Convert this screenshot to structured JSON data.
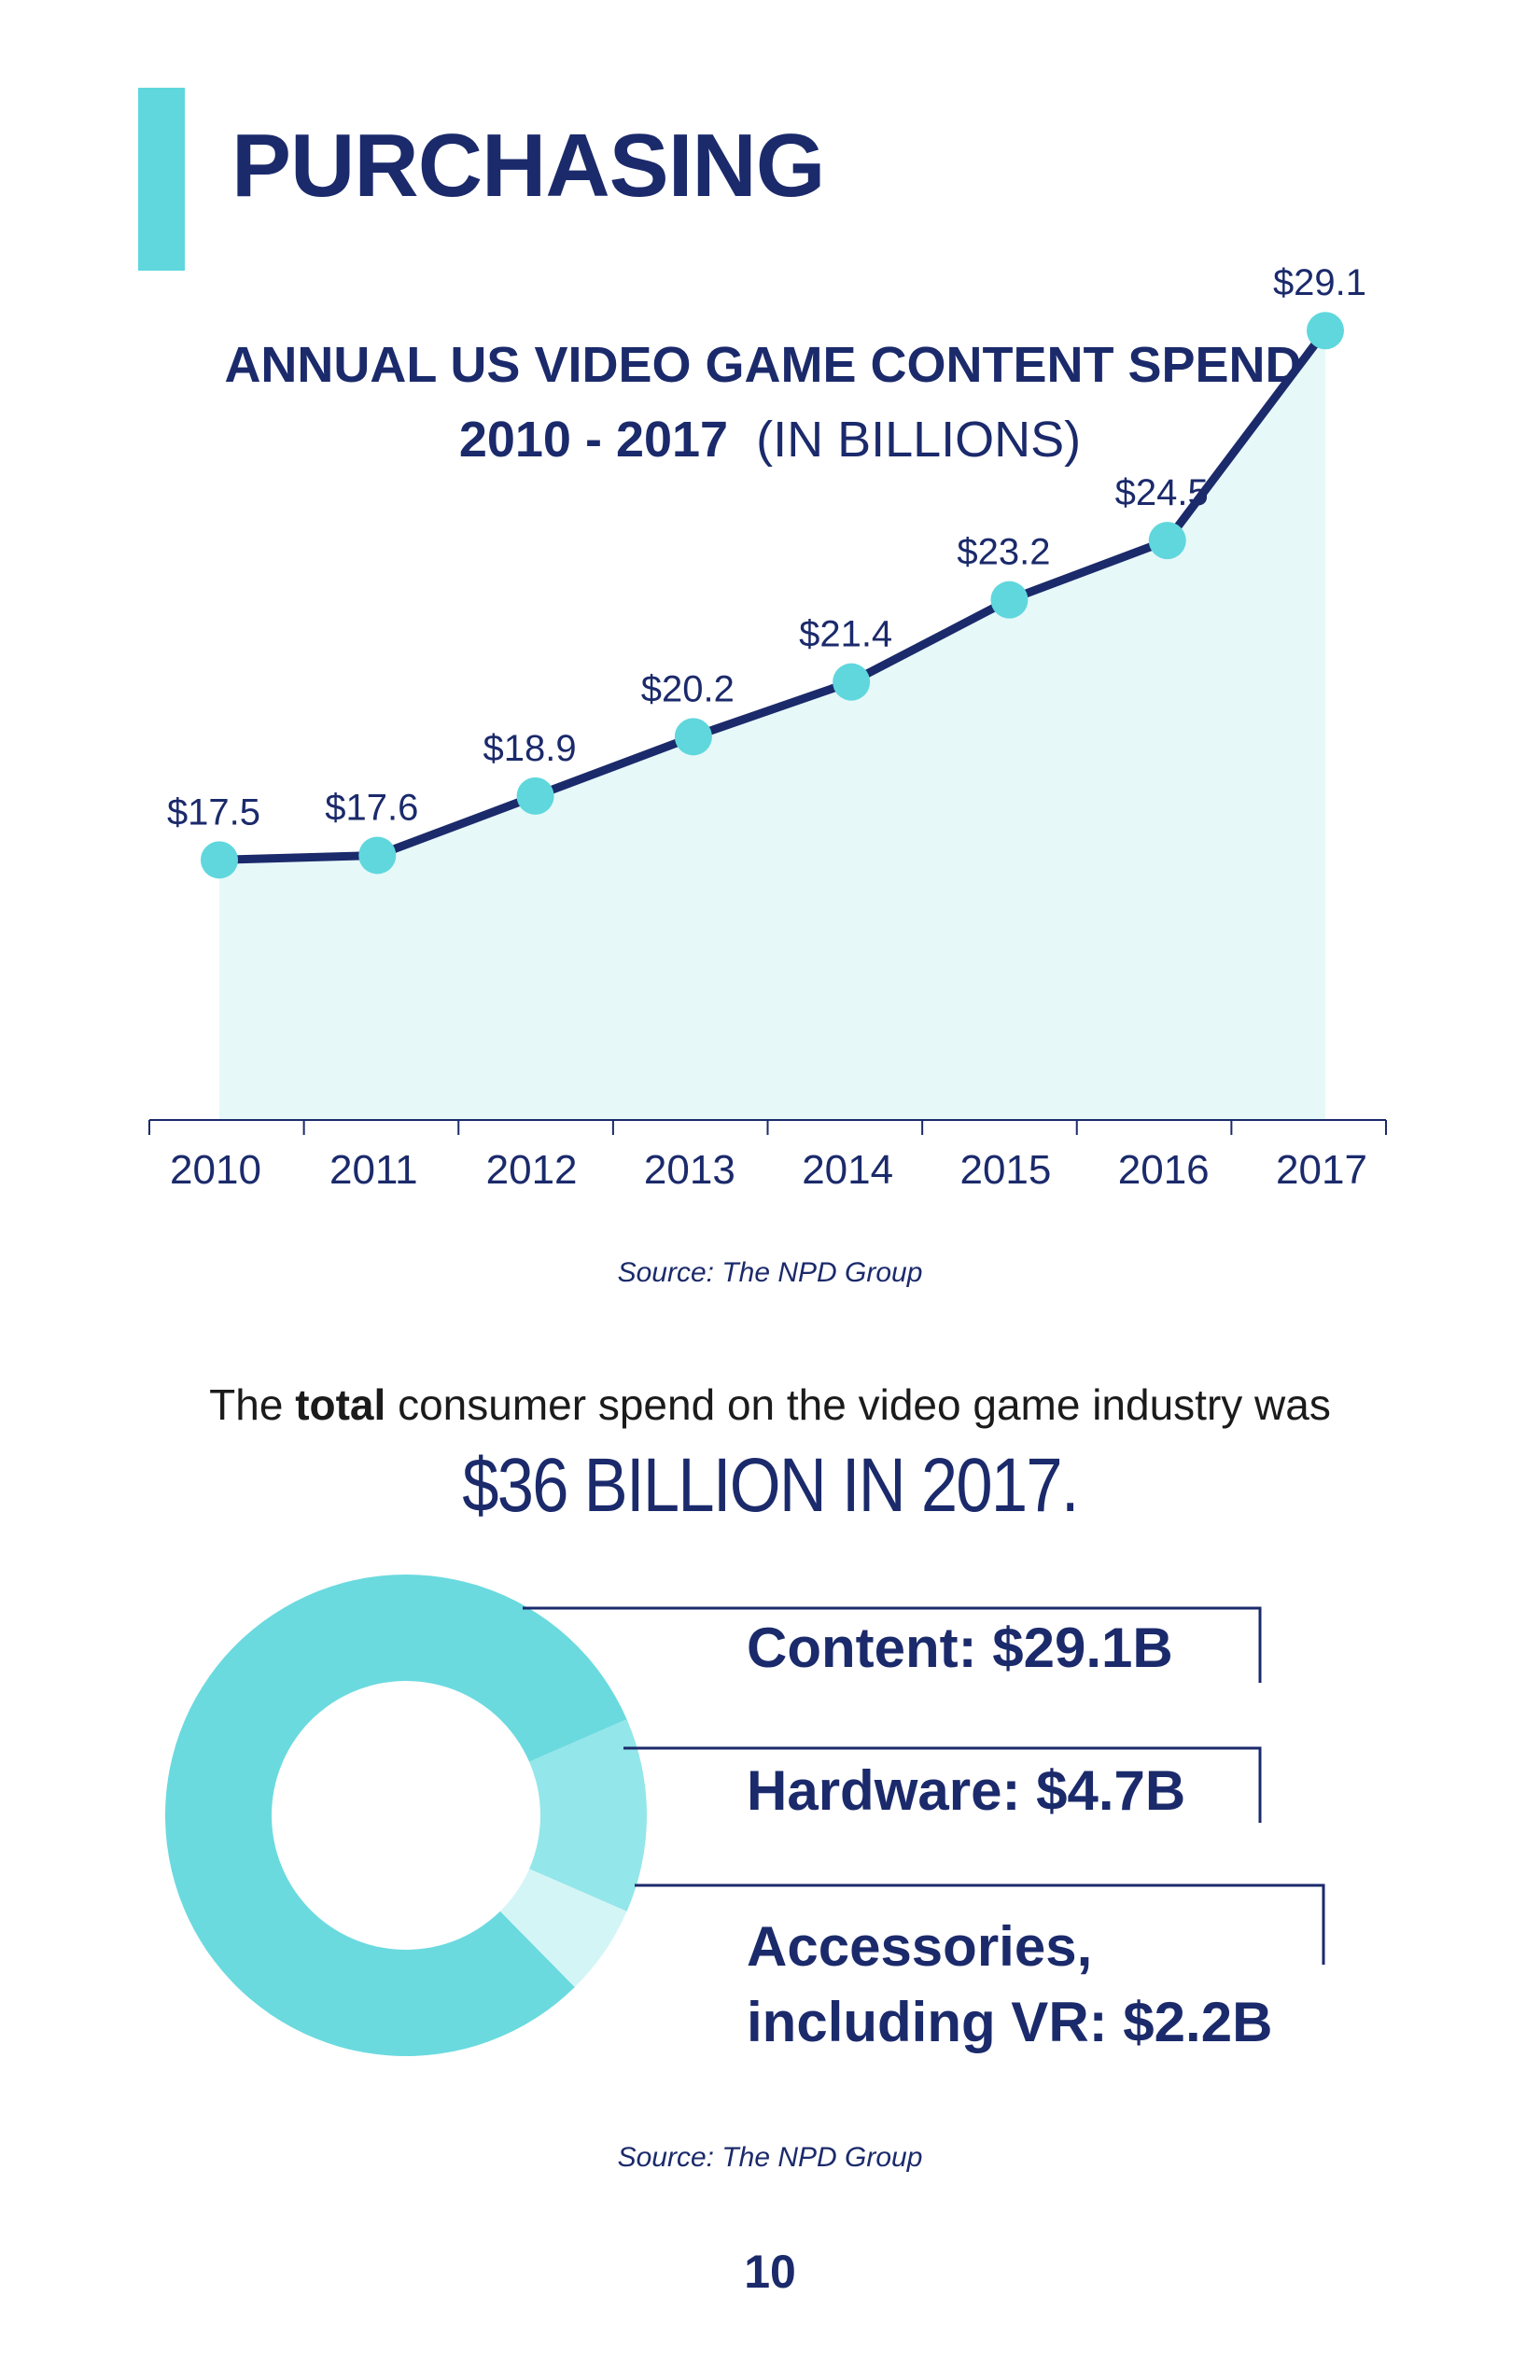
{
  "page": {
    "title": "PURCHASING",
    "page_number": "10"
  },
  "line_chart_text": {
    "title_line1": "ANNUAL US VIDEO GAME CONTENT SPEND,",
    "title_years": "2010 - 2017",
    "title_unit": "(IN BILLIONS)",
    "source": "Source: The NPD Group"
  },
  "total": {
    "prefix": "The",
    "bold_word": "total",
    "suffix": "consumer spend on the video game industry was",
    "headline": "$36 BILLION IN 2017."
  },
  "donut_text": {
    "source": "Source: The NPD Group"
  },
  "colors": {
    "navy": "#1b2a6b",
    "teal": "#5fd7dd",
    "content": "#6adadf",
    "hardware": "#93e6e9",
    "accessories": "#d4f5f6",
    "area_fill": "#e6f8f8"
  },
  "chart_data": [
    {
      "type": "area",
      "title": "ANNUAL US VIDEO GAME CONTENT SPEND, 2010 - 2017 (IN BILLIONS)",
      "categories": [
        "2010",
        "2011",
        "2012",
        "2013",
        "2014",
        "2015",
        "2016",
        "2017"
      ],
      "values": [
        17.5,
        17.6,
        18.9,
        20.2,
        21.4,
        23.2,
        24.5,
        29.1
      ],
      "data_labels": [
        "$17.5",
        "$17.6",
        "$18.9",
        "$20.2",
        "$21.4",
        "$23.2",
        "$24.5",
        "$29.1"
      ],
      "xlabel": "",
      "ylabel": "",
      "ylim": [
        11.8,
        29.8
      ],
      "grid": false,
      "source": "Source: The NPD Group"
    },
    {
      "type": "pie",
      "style": "donut",
      "title": "$36 BILLION IN 2017.",
      "slices": [
        {
          "name": "Content",
          "value": 29.1,
          "label_line1": "Content: $29.1B",
          "label_line2": ""
        },
        {
          "name": "Hardware",
          "value": 4.7,
          "label_line1": "Hardware: $4.7B",
          "label_line2": ""
        },
        {
          "name": "Accessories, including VR",
          "value": 2.2,
          "label_line1": "Accessories,",
          "label_line2": "including VR: $2.2B"
        }
      ],
      "source": "Source: The NPD Group"
    }
  ]
}
